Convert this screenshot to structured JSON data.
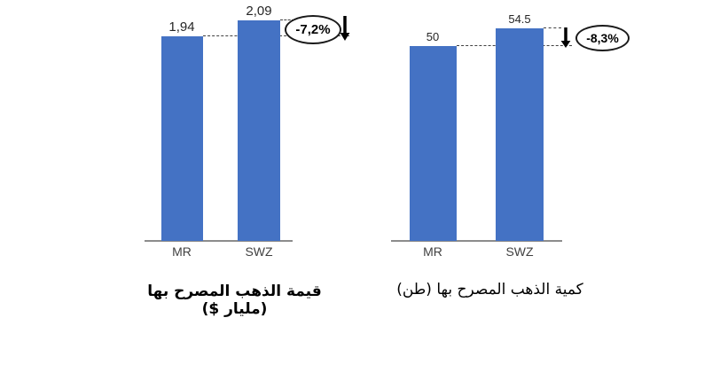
{
  "page": {
    "background": "#ffffff"
  },
  "chart_data": [
    {
      "type": "bar",
      "title": "قيمة الذهب المصرح بها (مليار $)",
      "categories": [
        "MR",
        "SWZ"
      ],
      "values": [
        1.94,
        2.09
      ],
      "value_labels": [
        "1,94",
        "2,09"
      ],
      "annotation": {
        "label": "-7,2%",
        "shape": "ellipse",
        "arrow": "down",
        "layout": "ellipse-then-arrow"
      },
      "ylim": [
        0,
        2.28
      ],
      "bar_color": "#4472C4",
      "grid": false,
      "legend": false
    },
    {
      "type": "bar",
      "title": "كمية الذهب المصرح بها (طن)",
      "categories": [
        "MR",
        "SWZ"
      ],
      "values": [
        50,
        54.5
      ],
      "value_labels": [
        "50",
        "54.5"
      ],
      "annotation": {
        "label": "-8,3%",
        "shape": "ellipse",
        "arrow": "down",
        "layout": "arrow-then-ellipse"
      },
      "ylim": [
        0,
        61.8
      ],
      "bar_color": "#4472C4",
      "grid": false,
      "legend": false
    }
  ]
}
